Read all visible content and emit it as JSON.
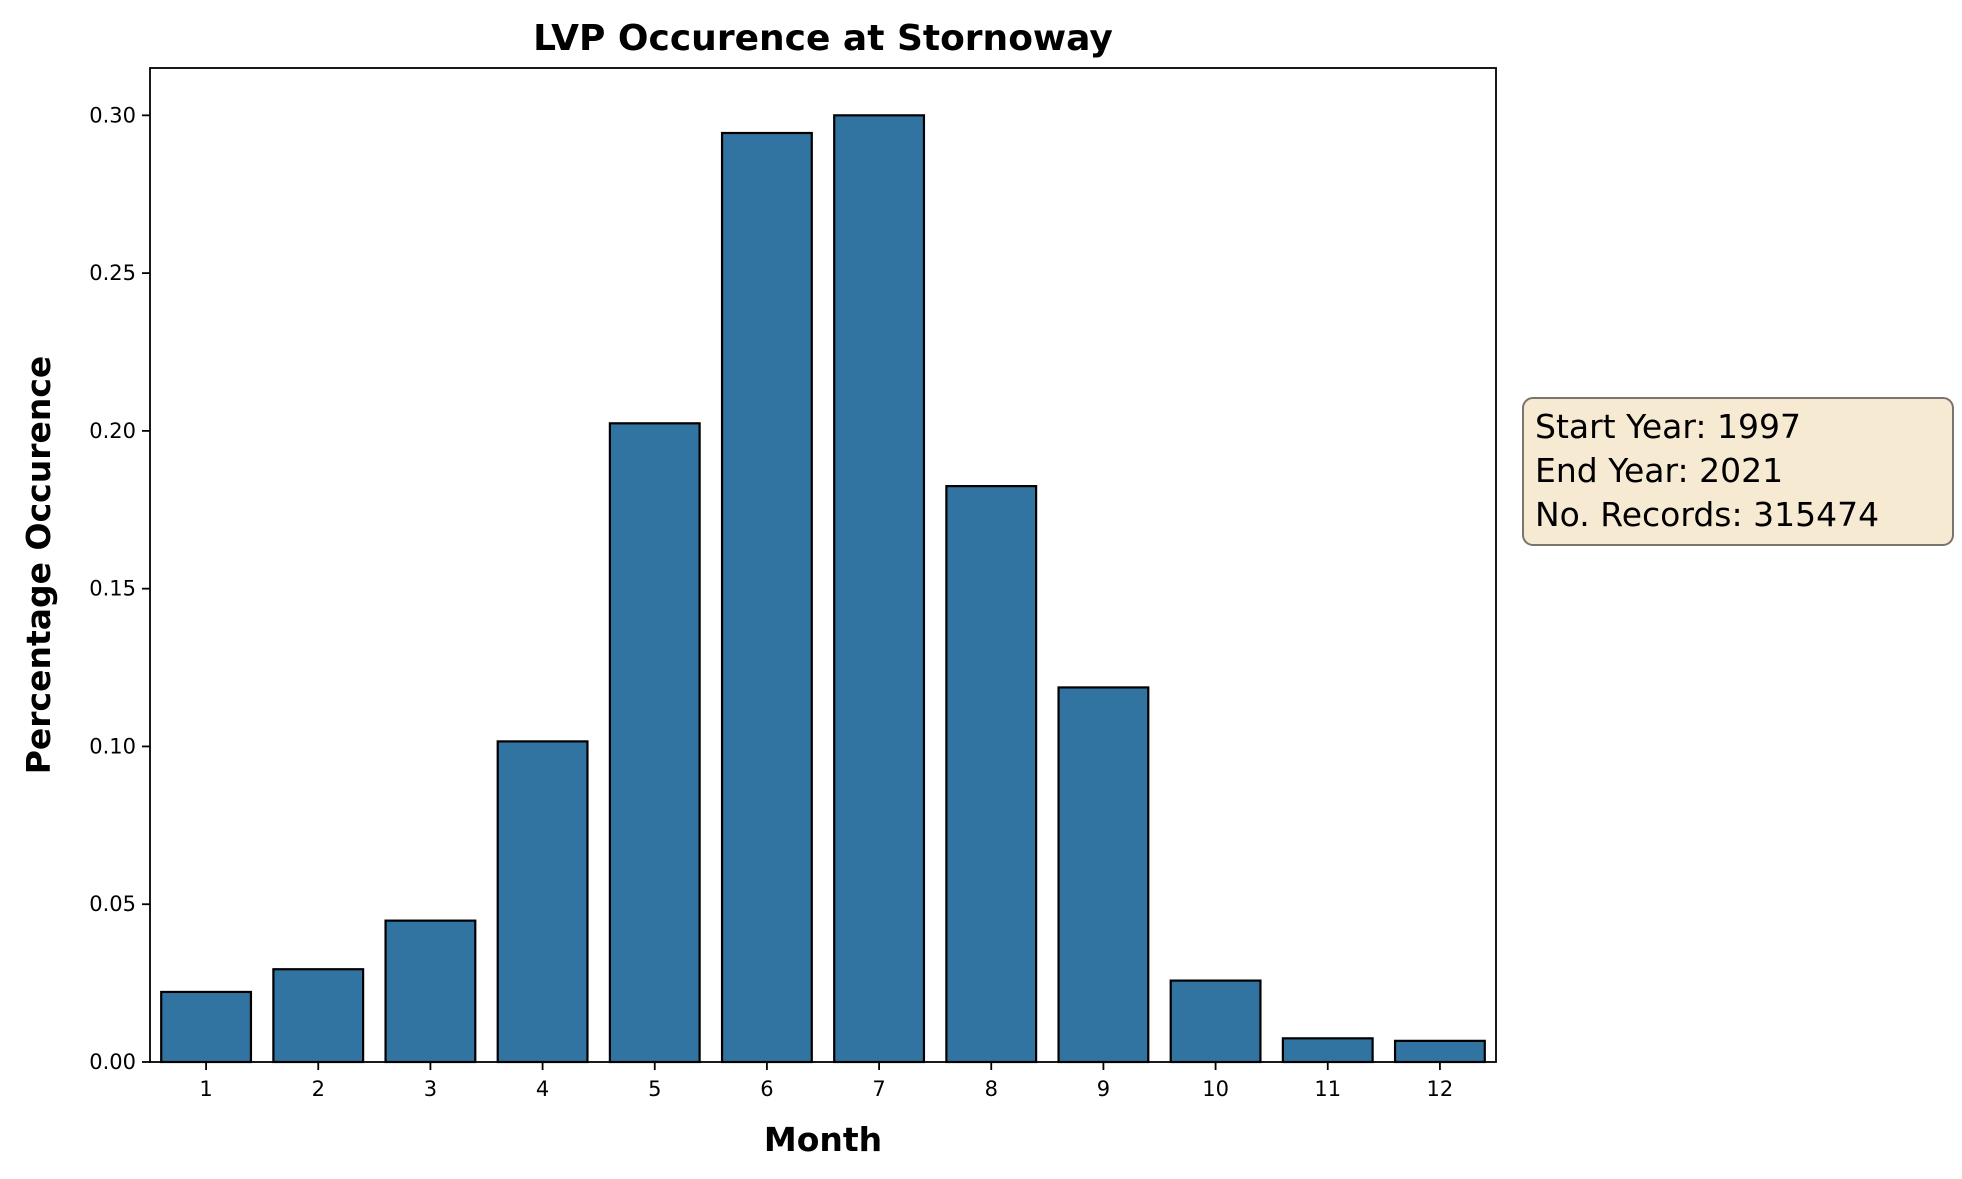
{
  "chart_data": {
    "type": "bar",
    "title": "LVP Occurence at Stornoway",
    "xlabel": "Month",
    "ylabel": "Percentage Occurence",
    "categories": [
      "1",
      "2",
      "3",
      "4",
      "5",
      "6",
      "7",
      "8",
      "9",
      "10",
      "11",
      "12"
    ],
    "values": [
      0.0222,
      0.0294,
      0.0448,
      0.1016,
      0.2024,
      0.2944,
      0.3,
      0.1825,
      0.1187,
      0.0258,
      0.0075,
      0.0067
    ],
    "ylim": [
      0,
      0.315
    ],
    "yticks": [
      "0.00",
      "0.05",
      "0.10",
      "0.15",
      "0.20",
      "0.25",
      "0.30"
    ],
    "grid": false,
    "bar_color": "#3274a1",
    "edge_color": "#000000"
  },
  "info_box": {
    "lines": [
      "Start Year: 1997",
      "End Year: 2021",
      "No. Records: 315474"
    ],
    "background": "#f7ead3"
  }
}
